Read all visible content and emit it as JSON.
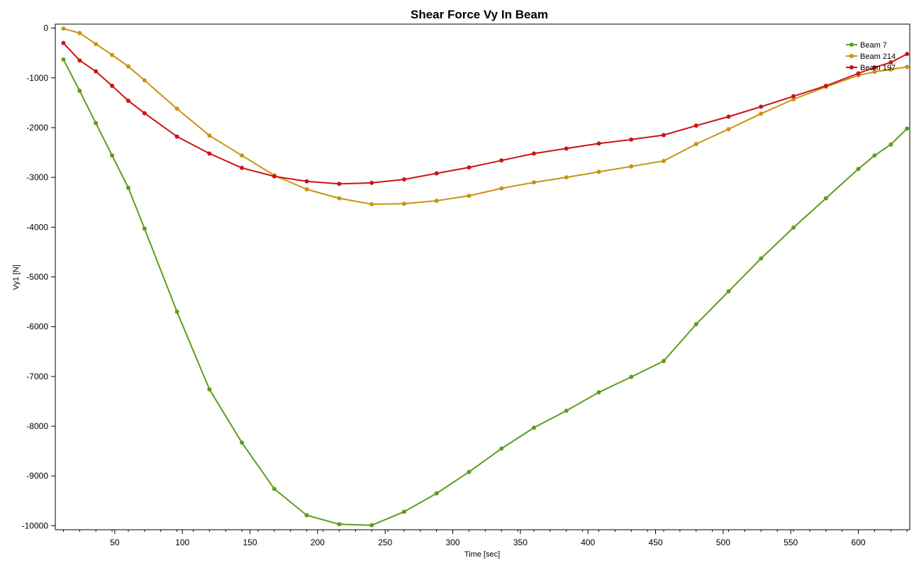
{
  "chart_data": {
    "type": "line",
    "title": "Shear Force Vy In Beam",
    "xlabel": "Time [sec]",
    "ylabel": "Vy1 [N]",
    "xlim": [
      6,
      638
    ],
    "ylim": [
      -10080,
      80
    ],
    "xticks": [
      50,
      100,
      150,
      200,
      250,
      300,
      350,
      400,
      450,
      500,
      550,
      600
    ],
    "yticks": [
      0,
      -1000,
      -2000,
      -3000,
      -4000,
      -5000,
      -6000,
      -7000,
      -8000,
      -9000,
      -10000
    ],
    "xtick_labels": [
      "50",
      "100",
      "150",
      "200",
      "250",
      "300",
      "350",
      "400",
      "450",
      "500",
      "550",
      "600"
    ],
    "ytick_labels": [
      "0",
      "-1000",
      "-2000",
      "-3000",
      "-4000",
      "-5000",
      "-6000",
      "-7000",
      "-8000",
      "-9000",
      "-10000"
    ],
    "grid": false,
    "legend_position": "top-right",
    "x": [
      12,
      24,
      36,
      48,
      60,
      72,
      96,
      120,
      144,
      168,
      192,
      216,
      240,
      264,
      288,
      312,
      336,
      360,
      384,
      408,
      432,
      456,
      480,
      504,
      528,
      552,
      576,
      600,
      612,
      624,
      636
    ],
    "series": [
      {
        "name": "Beam 7",
        "color": "#5c9e1b",
        "values": [
          -630,
          -1260,
          -1910,
          -2560,
          -3210,
          -4030,
          -5700,
          -7260,
          -8330,
          -9260,
          -9790,
          -9970,
          -9990,
          -9720,
          -9350,
          -8920,
          -8450,
          -8030,
          -7690,
          -7320,
          -7010,
          -6690,
          -5950,
          -5290,
          -4630,
          -4010,
          -3420,
          -2830,
          -2560,
          -2340,
          -2020
        ]
      },
      {
        "name": "Beam 214",
        "color": "#c99312",
        "values": [
          -10,
          -100,
          -320,
          -540,
          -770,
          -1050,
          -1620,
          -2160,
          -2560,
          -2960,
          -3240,
          -3420,
          -3540,
          -3530,
          -3470,
          -3370,
          -3220,
          -3100,
          -3000,
          -2890,
          -2780,
          -2670,
          -2330,
          -2030,
          -1720,
          -1430,
          -1180,
          -950,
          -880,
          -830,
          -780
        ]
      },
      {
        "name": "Beam 197",
        "color": "#cc1414",
        "values": [
          -300,
          -650,
          -870,
          -1160,
          -1460,
          -1710,
          -2180,
          -2520,
          -2810,
          -2980,
          -3080,
          -3130,
          -3110,
          -3040,
          -2920,
          -2800,
          -2660,
          -2520,
          -2420,
          -2320,
          -2240,
          -2150,
          -1960,
          -1780,
          -1580,
          -1370,
          -1160,
          -910,
          -790,
          -690,
          -520
        ]
      }
    ]
  }
}
